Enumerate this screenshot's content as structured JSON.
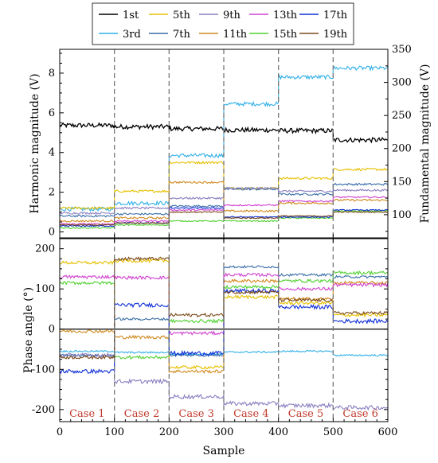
{
  "chart_data": [
    {
      "type": "line",
      "ylabel": "Harmonic magnitude (V)",
      "y2label": "Fundamental magnitude (V)",
      "xlim": [
        0,
        600
      ],
      "ylim": [
        -0.3,
        9.2
      ],
      "y2lim": [
        65,
        350
      ],
      "yticks": [
        0,
        2,
        4,
        6,
        8
      ],
      "y2ticks": [
        100,
        150,
        200,
        250,
        300,
        350
      ],
      "case_boundaries": [
        100,
        200,
        300,
        400,
        500
      ],
      "legend": {
        "placement": "top",
        "entries": [
          {
            "name": "1st",
            "color": "#000000"
          },
          {
            "name": "5th",
            "color": "#e6c000"
          },
          {
            "name": "9th",
            "color": "#8a7fc0"
          },
          {
            "name": "13th",
            "color": "#d040d0"
          },
          {
            "name": "17th",
            "color": "#1030d8"
          },
          {
            "name": "3rd",
            "color": "#30b0e8"
          },
          {
            "name": "7th",
            "color": "#3a6ea8"
          },
          {
            "name": "11th",
            "color": "#d08a20"
          },
          {
            "name": "15th",
            "color": "#50d030"
          },
          {
            "name": "19th",
            "color": "#7a4a1a"
          }
        ]
      },
      "series": [
        {
          "name": "1st",
          "axis": "y2",
          "color": "#000000",
          "levels": [
            235,
            233,
            230,
            228,
            227,
            213
          ],
          "noise": 3.5
        },
        {
          "name": "3rd",
          "color": "#30b0e8",
          "levels": [
            1.15,
            1.45,
            3.85,
            6.45,
            7.8,
            8.25
          ],
          "noise": 0.1
        },
        {
          "name": "5th",
          "color": "#e6c000",
          "levels": [
            1.2,
            2.05,
            3.5,
            2.2,
            2.7,
            3.15
          ],
          "noise": 0.06
        },
        {
          "name": "7th",
          "color": "#3a6ea8",
          "levels": [
            0.8,
            0.9,
            1.3,
            2.15,
            1.9,
            2.4
          ],
          "noise": 0.05
        },
        {
          "name": "9th",
          "color": "#8a7fc0",
          "levels": [
            0.95,
            1.2,
            1.7,
            2.2,
            2.05,
            2.1
          ],
          "noise": 0.05
        },
        {
          "name": "11th",
          "color": "#d08a20",
          "levels": [
            0.55,
            0.7,
            2.5,
            1.05,
            1.45,
            1.6
          ],
          "noise": 0.05
        },
        {
          "name": "13th",
          "color": "#d040d0",
          "levels": [
            0.4,
            0.55,
            1.1,
            1.35,
            1.55,
            1.75
          ],
          "noise": 0.04
        },
        {
          "name": "15th",
          "color": "#50d030",
          "levels": [
            0.2,
            0.35,
            0.55,
            0.55,
            0.7,
            1.05
          ],
          "noise": 0.03
        },
        {
          "name": "17th",
          "color": "#1030d8",
          "levels": [
            0.3,
            0.45,
            1.2,
            0.75,
            0.75,
            1.1
          ],
          "noise": 0.03
        },
        {
          "name": "19th",
          "color": "#7a4a1a",
          "levels": [
            0.35,
            0.45,
            1.0,
            0.7,
            0.8,
            1.0
          ],
          "noise": 0.03
        }
      ]
    },
    {
      "type": "line",
      "xlabel": "Sample",
      "ylabel": "Phase angle (°)",
      "xlim": [
        0,
        600
      ],
      "ylim": [
        -230,
        225
      ],
      "xticks": [
        0,
        100,
        200,
        300,
        400,
        500,
        600
      ],
      "yticks": [
        -200,
        -100,
        0,
        100,
        200
      ],
      "case_boundaries": [
        100,
        200,
        300,
        400,
        500
      ],
      "case_labels": [
        "Case 1",
        "Case 2",
        "Case 3",
        "Case 4",
        "Case 5",
        "Case 6"
      ],
      "series": [
        {
          "name": "1st",
          "color": "#000000",
          "levels": [
            0,
            0,
            0,
            0,
            0,
            0
          ],
          "noise": 0
        },
        {
          "name": "3rd",
          "color": "#30b0e8",
          "levels": [
            -55,
            -58,
            -62,
            -57,
            -55,
            -65
          ],
          "noise": 2
        },
        {
          "name": "5th",
          "color": "#e6c000",
          "levels": [
            165,
            170,
            -95,
            80,
            65,
            35
          ],
          "noise": 4
        },
        {
          "name": "7th",
          "color": "#3a6ea8",
          "levels": [
            -65,
            25,
            -65,
            155,
            135,
            130
          ],
          "noise": 3
        },
        {
          "name": "9th",
          "color": "#8a7fc0",
          "levels": [
            -65,
            -130,
            -168,
            -185,
            -190,
            -195
          ],
          "noise": 5
        },
        {
          "name": "11th",
          "color": "#d08a20",
          "levels": [
            -5,
            -20,
            -105,
            120,
            75,
            115
          ],
          "noise": 4
        },
        {
          "name": "13th",
          "color": "#d040d0",
          "levels": [
            130,
            128,
            -10,
            135,
            100,
            110
          ],
          "noise": 4
        },
        {
          "name": "15th",
          "color": "#50d030",
          "levels": [
            115,
            -70,
            20,
            105,
            120,
            140
          ],
          "noise": 4
        },
        {
          "name": "17th",
          "color": "#1030d8",
          "levels": [
            -105,
            60,
            -60,
            95,
            55,
            20
          ],
          "noise": 5
        },
        {
          "name": "19th",
          "color": "#7a4a1a",
          "levels": [
            -70,
            175,
            35,
            92,
            72,
            40
          ],
          "noise": 4
        }
      ]
    }
  ]
}
